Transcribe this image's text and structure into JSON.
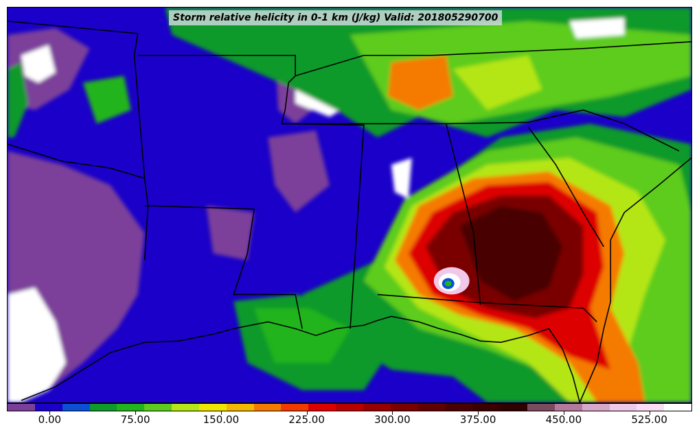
{
  "title": "Storm relative helicity in 0-1 km (J/kg) Valid: 201805290700",
  "colorbar": {
    "colors": [
      "#7b3f9a",
      "#1a00c8",
      "#0a4fd4",
      "#0f9a2a",
      "#23b41d",
      "#5dcc1e",
      "#b4e618",
      "#f0e600",
      "#f5b800",
      "#f57a00",
      "#f03a00",
      "#dd0000",
      "#b80000",
      "#960000",
      "#7a0000",
      "#600000",
      "#4a0000",
      "#3a0000",
      "#2e0000",
      "#7a4a5e",
      "#b47a9c",
      "#d8a8c8",
      "#f0c8e8",
      "#fadcf4",
      "#ffffff"
    ],
    "tick_labels": [
      "0.00",
      "75.00",
      "150.00",
      "225.00",
      "300.00",
      "375.00",
      "450.00",
      "525.00"
    ],
    "tick_values": [
      0,
      75,
      150,
      225,
      300,
      375,
      450,
      525
    ],
    "range": [
      -37.5,
      562.5
    ]
  },
  "map": {
    "projection": "lambert",
    "colors": {
      "low": "#1a00c8",
      "neg": "#7b3f9a",
      "green": "#0f9a2a",
      "lime": "#5dcc1e",
      "yellow": "#b4e618",
      "orange": "#f57a00",
      "red": "#dd0000",
      "dark": "#7a0000",
      "pink": "#f0c8e8",
      "white": "#ffffff"
    }
  }
}
